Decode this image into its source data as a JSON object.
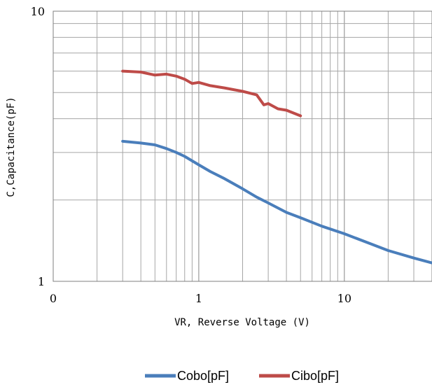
{
  "chart_data": {
    "type": "line",
    "xscale": "log",
    "yscale": "log",
    "xlim": [
      0.1,
      40
    ],
    "ylim": [
      1,
      10
    ],
    "xlabel": "VR, Reverse Voltage (V)",
    "ylabel": "C,Capacitance(pF)",
    "x_tick_labels": [
      "0",
      "1",
      "10"
    ],
    "y_tick_labels": [
      "1",
      "10"
    ],
    "grid": true,
    "legend_position": "bottom",
    "series": [
      {
        "name": "Cobo[pF]",
        "color": "#4a7ebb",
        "x": [
          0.3,
          0.4,
          0.5,
          0.6,
          0.7,
          0.8,
          1.0,
          1.2,
          1.5,
          2.0,
          2.5,
          3.0,
          4.0,
          5.0,
          7.0,
          10,
          15,
          20,
          30,
          40
        ],
        "y": [
          3.3,
          3.25,
          3.2,
          3.1,
          3.0,
          2.9,
          2.7,
          2.55,
          2.4,
          2.2,
          2.05,
          1.95,
          1.8,
          1.72,
          1.6,
          1.5,
          1.38,
          1.3,
          1.22,
          1.17
        ]
      },
      {
        "name": "Cibo[pF]",
        "color": "#be4b48",
        "x": [
          0.3,
          0.4,
          0.5,
          0.6,
          0.7,
          0.8,
          0.9,
          1.0,
          1.2,
          1.5,
          2.0,
          2.5,
          2.8,
          3.0,
          3.5,
          4.0,
          5.0
        ],
        "y": [
          6.0,
          5.95,
          5.8,
          5.85,
          5.75,
          5.6,
          5.4,
          5.45,
          5.3,
          5.2,
          5.05,
          4.9,
          4.5,
          4.55,
          4.35,
          4.3,
          4.1
        ]
      }
    ]
  }
}
